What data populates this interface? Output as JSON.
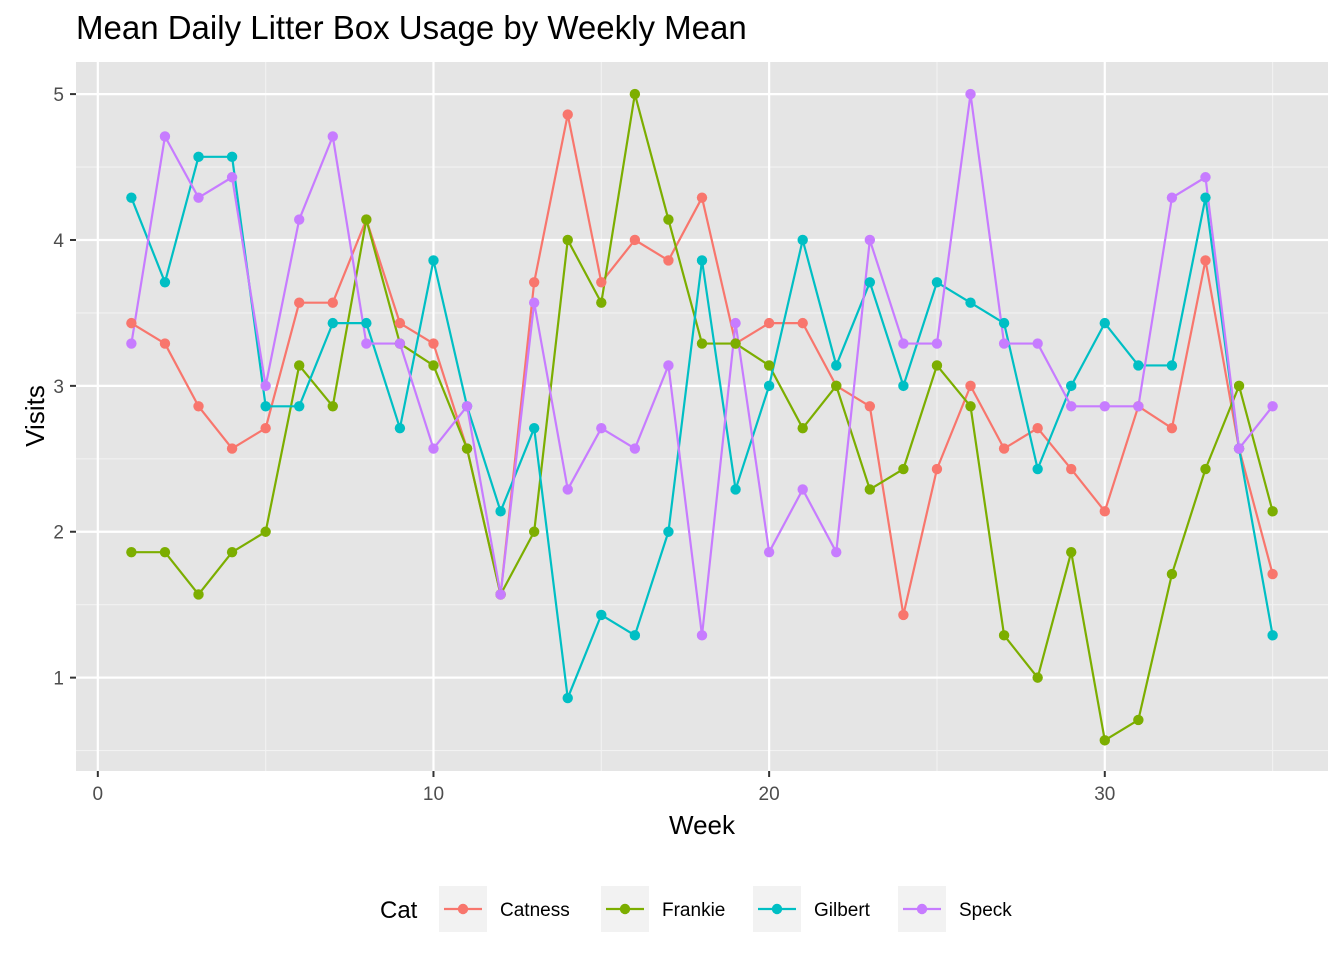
{
  "chart_data": {
    "type": "line",
    "title": "Mean Daily Litter Box Usage by Weekly Mean",
    "xlabel": "Week",
    "ylabel": "Visits",
    "xlim": [
      -0.65,
      36.65
    ],
    "ylim": [
      0.36,
      5.22
    ],
    "x_ticks": [
      0,
      10,
      20,
      30
    ],
    "y_ticks": [
      1,
      2,
      3,
      4,
      5
    ],
    "grid": true,
    "legend_title": "Cat",
    "legend_position": "bottom",
    "x": [
      1,
      2,
      3,
      4,
      5,
      6,
      7,
      8,
      9,
      10,
      11,
      12,
      13,
      14,
      15,
      16,
      17,
      18,
      19,
      20,
      21,
      22,
      23,
      24,
      25,
      26,
      27,
      28,
      29,
      30,
      31,
      32,
      33,
      34,
      35
    ],
    "series": [
      {
        "name": "Catness",
        "color": "#F8766D",
        "values": [
          3.43,
          3.29,
          2.86,
          2.57,
          2.71,
          3.57,
          3.57,
          4.14,
          3.43,
          3.29,
          2.57,
          1.57,
          3.71,
          4.86,
          3.71,
          4.0,
          3.86,
          4.29,
          3.29,
          3.43,
          3.43,
          3.0,
          2.86,
          1.43,
          2.43,
          3.0,
          2.57,
          2.71,
          2.43,
          2.14,
          2.86,
          2.71,
          3.86,
          2.57,
          1.71
        ]
      },
      {
        "name": "Frankie",
        "color": "#7CAE00",
        "values": [
          1.86,
          1.86,
          1.57,
          1.86,
          2.0,
          3.14,
          2.86,
          4.14,
          3.29,
          3.14,
          2.57,
          1.57,
          2.0,
          4.0,
          3.57,
          5.0,
          4.14,
          3.29,
          3.29,
          3.14,
          2.71,
          3.0,
          2.29,
          2.43,
          3.14,
          2.86,
          1.29,
          1.0,
          1.86,
          0.57,
          0.71,
          1.71,
          2.43,
          3.0,
          2.14
        ]
      },
      {
        "name": "Gilbert",
        "color": "#00BFC4",
        "values": [
          4.29,
          3.71,
          4.57,
          4.57,
          2.86,
          2.86,
          3.43,
          3.43,
          2.71,
          3.86,
          2.86,
          2.14,
          2.71,
          0.86,
          1.43,
          1.29,
          2.0,
          3.86,
          2.29,
          3.0,
          4.0,
          3.14,
          3.71,
          3.0,
          3.71,
          3.57,
          3.43,
          2.43,
          3.0,
          3.43,
          3.14,
          3.14,
          4.29,
          2.57,
          1.29
        ]
      },
      {
        "name": "Speck",
        "color": "#C77CFF",
        "values": [
          3.29,
          4.71,
          4.29,
          4.43,
          3.0,
          4.14,
          4.71,
          3.29,
          3.29,
          2.57,
          2.86,
          1.57,
          3.57,
          2.29,
          2.71,
          2.57,
          3.14,
          1.29,
          3.43,
          1.86,
          2.29,
          1.86,
          4.0,
          3.29,
          3.29,
          5.0,
          3.29,
          3.29,
          2.86,
          2.86,
          2.86,
          4.29,
          4.43,
          2.57,
          2.86
        ]
      }
    ]
  }
}
